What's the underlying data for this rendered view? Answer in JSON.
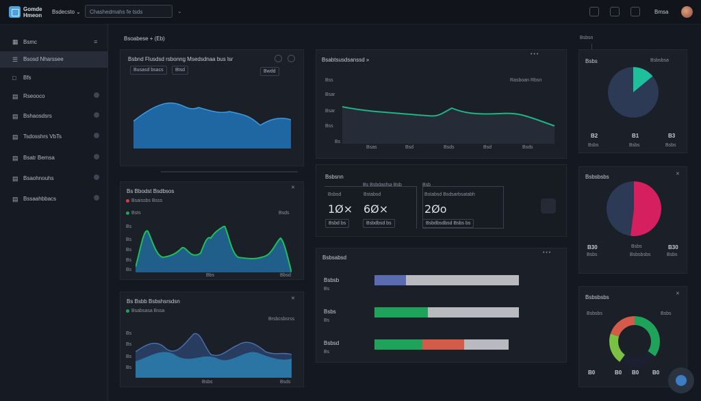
{
  "header": {
    "brand": "Gomde\nHmeon",
    "breadcrumb": "Bsdecsto ⌄",
    "search_value": "Chashedmahs fe tsds",
    "search_chevron": "⌄",
    "user_name": "Bmsa"
  },
  "sidebar": {
    "heading": "Bsmc",
    "items": [
      {
        "label": "Bsosd Nharssee",
        "icon": "☰"
      },
      {
        "label": "Bfs",
        "icon": "□"
      },
      {
        "label": "Rseooco",
        "icon": "▤"
      },
      {
        "label": "Bshaosdsrs",
        "icon": "▤"
      },
      {
        "label": "Tsdosshrs VbTs",
        "icon": "▤"
      },
      {
        "label": "Bsatr Bemsa",
        "icon": "▤"
      },
      {
        "label": "Bsaohnouhs",
        "icon": "▤"
      },
      {
        "label": "Bssaahbbacs",
        "icon": "▤"
      }
    ]
  },
  "section_title": "Bsoabese + (Eb)",
  "panel_area": {
    "title": "Bsbnd Flusdsd rsbonng Msedsdnaa bus lsr",
    "chip1": "Busasd bsacs",
    "chip2": "Btsd",
    "chip3": "Bwdd",
    "colors": {
      "fill": "#1f6fb0",
      "line": "#3b9be0"
    }
  },
  "panel_line": {
    "title": "Bsabtsusdsanssd »",
    "legend": "Rasboan Rbsn",
    "y_ticks": [
      "Bss",
      "Bsar",
      "Bsar",
      "Bss",
      "Bs"
    ],
    "x_ticks": [
      "Bsas",
      "Bsd",
      "Bsds",
      "Bsd",
      "Bsds"
    ],
    "color": "#1fb585"
  },
  "panel_green": {
    "title": "Bs Bbodst Bsdbsos",
    "legend1": "Bsaissbs Bsss",
    "legend2": "Bsts",
    "legend3": "Bsds",
    "y_ticks": [
      "Bs",
      "Bs",
      "Bs",
      "Bs",
      "Bs"
    ],
    "x_ticks": [
      "Bbs",
      "Bbsd"
    ]
  },
  "panel_blue": {
    "title": "Bs Bsbb Bsbshsrsdsn",
    "legend1": "Bsabsasa Bssa",
    "legend2": "Brsbcsbsrss",
    "y_ticks": [
      "Bs",
      "Bs",
      "Bs",
      "Bs"
    ],
    "x_ticks": [
      "Bsbs",
      "Bsds"
    ]
  },
  "kpi": {
    "title": "Bsbsnn",
    "subtitle": "Bs Bsbdasfsa Bsb",
    "subtitle2": "Bsb",
    "box1": {
      "label": "Bsbsd",
      "value": "1Ø×",
      "chip": "Bsbd bs"
    },
    "box2": {
      "label": "Bstabsd",
      "value": "6Ø×",
      "chip": "Bsbdbsd bs"
    },
    "box3": {
      "label": "Bstabsd Bsdsarbsatabh",
      "value": "2Øo",
      "chip": "Bsbdbsdbsd Bsbs bs"
    }
  },
  "progress": {
    "title": "Bsbsabsd",
    "rows": [
      {
        "label": "Bsbsb",
        "sub": "Bs",
        "segments": [
          {
            "value": 0.22,
            "color": "#5b6bb0"
          }
        ],
        "track": 1.0
      },
      {
        "label": "Bsbs",
        "sub": "Bs",
        "segments": [
          {
            "value": 0.37,
            "color": "#1fa35a"
          }
        ],
        "track": 1.0
      },
      {
        "label": "Bsbsd",
        "sub": "Bs",
        "segments": [
          {
            "value": 0.33,
            "color": "#1fa35a"
          },
          {
            "value": 0.29,
            "color": "#d45a4a"
          }
        ],
        "track": 0.93
      }
    ]
  },
  "right_title": "Bsbsn",
  "pie1": {
    "title": "Bsbs",
    "legend": "Bsbsbsa",
    "slices": [
      {
        "value": 0.14,
        "color": "#1fbf9b"
      },
      {
        "value": 0.86,
        "color": "#2c3a55"
      }
    ],
    "nums": [
      "B2",
      "B1",
      "B3"
    ],
    "labels": [
      "Bsbs",
      "Bsbs",
      "Bsbs"
    ]
  },
  "pie2": {
    "title": "Bsbsbsbs",
    "slices": [
      {
        "value": 0.52,
        "color": "#d61f5e"
      },
      {
        "value": 0.48,
        "color": "#2c3a55"
      }
    ],
    "nums": [
      "B30",
      "Bsbs",
      "B30"
    ],
    "labels": [
      "Bsbs",
      "Bsbsbsbs",
      "Bsbs"
    ]
  },
  "donut": {
    "title": "Bsbsbsbs",
    "legend1": "Bsbsbs",
    "legend2": "Bsbs",
    "slices": [
      {
        "value": 0.35,
        "color": "#1fa35a"
      },
      {
        "value": 0.25,
        "color": "#1a2030"
      },
      {
        "value": 0.2,
        "color": "#7ac043"
      },
      {
        "value": 0.2,
        "color": "#d45a4a"
      }
    ],
    "nums": [
      "B0",
      "B0",
      "B0",
      "B0"
    ]
  }
}
